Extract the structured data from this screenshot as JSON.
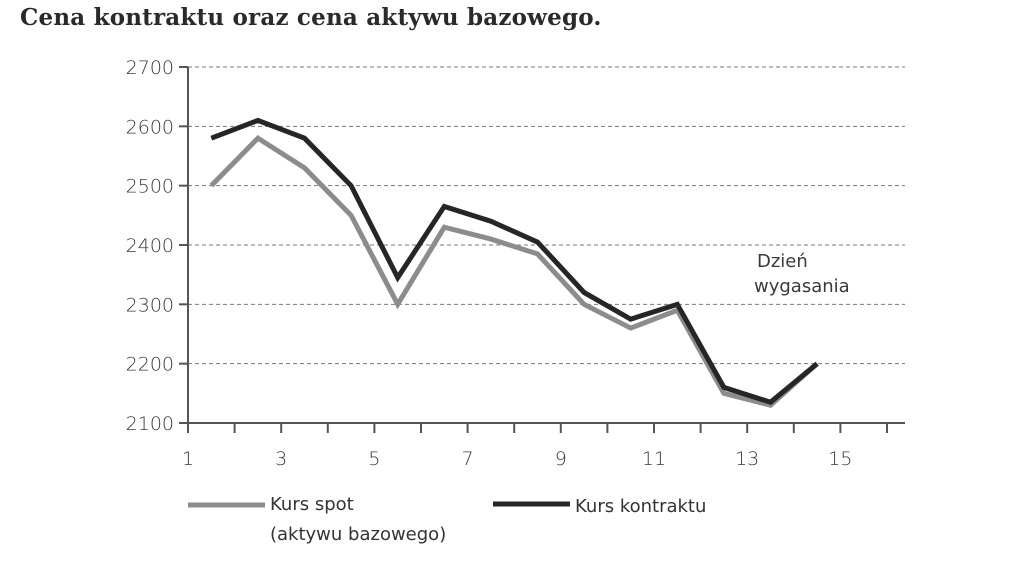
{
  "title": "Cena kontraktu oraz cena aktywu bazowego.",
  "annotation": {
    "line1": "Dzień",
    "line2": "wygasania"
  },
  "legend": {
    "spot_line1": "Kurs spot",
    "spot_line2": "(aktywu bazowego)",
    "contract": "Kurs kontraktu"
  },
  "colors": {
    "spot": "#8c8c8c",
    "contract": "#262626",
    "grid": "#7a7a7a",
    "axis": "#555555"
  },
  "y_ticks": [
    "2700",
    "2600",
    "2500",
    "2400",
    "2300",
    "2200",
    "2100"
  ],
  "x_tick_labels": [
    "1",
    "3",
    "5",
    "7",
    "9",
    "11",
    "13",
    "15"
  ],
  "chart_data": {
    "type": "line",
    "title": "Cena kontraktu oraz cena aktywu bazowego.",
    "xlabel": "",
    "ylabel": "",
    "xlim": [
      1,
      16.5
    ],
    "ylim": [
      2100,
      2700
    ],
    "grid": "horizontal dashed",
    "legend_position": "bottom",
    "x": [
      1.5,
      2.5,
      3.5,
      4.5,
      5.5,
      6.5,
      7.5,
      8.5,
      9.5,
      10.5,
      11.5,
      12.5,
      13.5,
      14.5
    ],
    "series": [
      {
        "name": "Kurs spot (aktywu bazowego)",
        "values": [
          2500,
          2580,
          2530,
          2450,
          2300,
          2430,
          2410,
          2385,
          2300,
          2260,
          2290,
          2150,
          2130,
          2200
        ]
      },
      {
        "name": "Kurs kontraktu",
        "values": [
          2580,
          2610,
          2580,
          2500,
          2345,
          2465,
          2440,
          2405,
          2320,
          2275,
          2300,
          2160,
          2135,
          2200
        ]
      }
    ],
    "annotations": [
      {
        "text": "Dzień wygasania",
        "x": 14.5,
        "y": 2200
      }
    ]
  }
}
